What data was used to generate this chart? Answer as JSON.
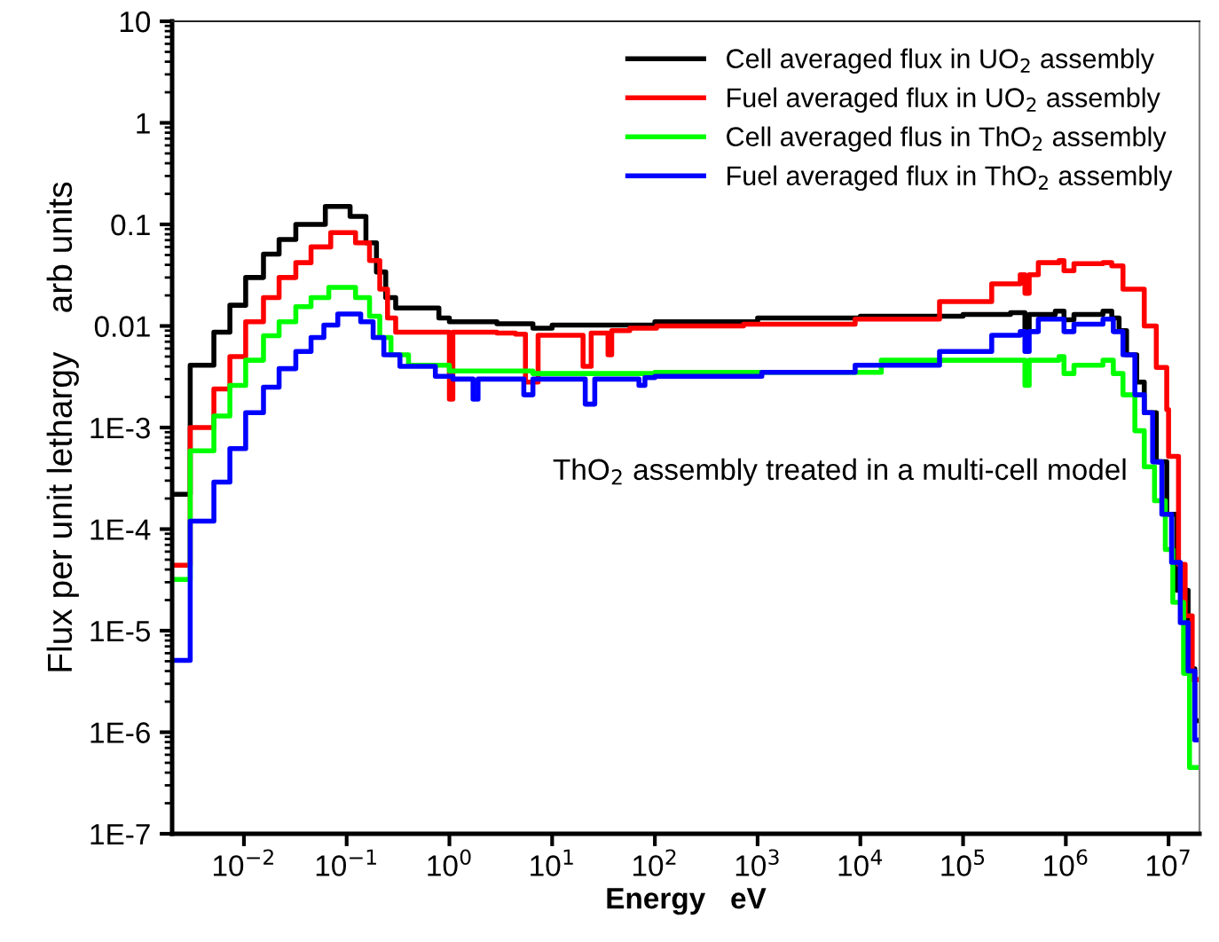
{
  "chart_data": {
    "type": "step",
    "xlabel": "Energy   eV",
    "ylabel": "Flux per unit lethargy    arb units",
    "log": "xy",
    "grid": false,
    "legend": "top right",
    "xlim": [
      0.002,
      20000000
    ],
    "ylim": [
      1e-07,
      10
    ],
    "xticks": [
      {
        "value": 0.01,
        "label": "10$^{−2}$"
      },
      {
        "value": 0.1,
        "label": "10$^{−1}$"
      },
      {
        "value": 1,
        "label": "10$^{0}$"
      },
      {
        "value": 10,
        "label": "10$^{1}$"
      },
      {
        "value": 100,
        "label": "10$^{2}$"
      },
      {
        "value": 1000,
        "label": "10$^{3}$"
      },
      {
        "value": 10000,
        "label": "10$^{4}$"
      },
      {
        "value": 100000,
        "label": "10$^{5}$"
      },
      {
        "value": 1000000,
        "label": "10$^{6}$"
      },
      {
        "value": 10000000,
        "label": "10$^{7}$"
      }
    ],
    "yticks": [
      {
        "value": 1e-07,
        "label": "1E-7"
      },
      {
        "value": 1e-06,
        "label": "1E-6"
      },
      {
        "value": 1e-05,
        "label": "1E-5"
      },
      {
        "value": 0.0001,
        "label": "1E-4"
      },
      {
        "value": 0.001,
        "label": "1E-3"
      },
      0.01,
      0.1,
      1,
      10
    ],
    "annotations": [
      "ThO$_{2}$ assembly treated in a multi-cell model"
    ],
    "series": [
      {
        "name": "Cell averaged flux in UO$_{2}$ assembly",
        "color": "#000000",
        "x": [
          0.002,
          0.003,
          0.0051,
          0.0073,
          0.0104,
          0.0155,
          0.022,
          0.032,
          0.062,
          0.108,
          0.154,
          0.195,
          0.24,
          0.3,
          0.79,
          1.0,
          2.9,
          6.5,
          10,
          100,
          1000,
          10000,
          100000,
          290000,
          400000,
          440000,
          790000,
          960000,
          1200000,
          2300000,
          2800000,
          3300000,
          3900000,
          4900000,
          5800000,
          7600000,
          9600000,
          12000000,
          15500000,
          18000000,
          20000000
        ],
        "values": [
          0.00022,
          0.0041,
          0.0087,
          0.016,
          0.03,
          0.051,
          0.071,
          0.1,
          0.15,
          0.12,
          0.066,
          0.034,
          0.019,
          0.015,
          0.012,
          0.011,
          0.0105,
          0.0095,
          0.0102,
          0.011,
          0.012,
          0.0125,
          0.013,
          0.0135,
          0.009,
          0.013,
          0.014,
          0.0115,
          0.013,
          0.014,
          0.012,
          0.009,
          0.0052,
          0.0028,
          0.0014,
          0.00046,
          0.00014,
          2.5e-05,
          4.2e-06,
          1.3e-06,
          1.3e-06
        ]
      },
      {
        "name": "Fuel averaged flux in UO$_{2}$ assembly",
        "color": "#ff0000",
        "x": [
          0.002,
          0.003,
          0.0051,
          0.0073,
          0.0104,
          0.0155,
          0.022,
          0.032,
          0.045,
          0.07,
          0.122,
          0.167,
          0.21,
          0.25,
          0.3,
          1.0,
          1.08,
          2.9,
          4.4,
          5.5,
          7.3,
          20,
          24,
          35,
          38,
          57,
          104,
          730,
          8900,
          59000,
          190000,
          360000,
          400000,
          440000,
          540000,
          860000,
          960000,
          1200000,
          2300000,
          2800000,
          3600000,
          5800000,
          7600000,
          9600000,
          10000000,
          12500000,
          14500000,
          17000000,
          20000000
        ],
        "values": [
          4.4e-05,
          0.001,
          0.0024,
          0.005,
          0.011,
          0.019,
          0.03,
          0.042,
          0.06,
          0.083,
          0.066,
          0.044,
          0.023,
          0.012,
          0.0087,
          0.0019,
          0.0087,
          0.0085,
          0.0083,
          0.0028,
          0.0081,
          0.004,
          0.0085,
          0.0052,
          0.009,
          0.0095,
          0.01,
          0.0104,
          0.0117,
          0.0174,
          0.026,
          0.032,
          0.021,
          0.032,
          0.042,
          0.044,
          0.035,
          0.041,
          0.042,
          0.039,
          0.023,
          0.01,
          0.0039,
          0.0015,
          0.00052,
          4.5e-05,
          1.4e-05,
          3.3e-06,
          3.3e-06
        ]
      },
      {
        "name": "Cell averaged flus in ThO$_{2}$ assembly",
        "color": "#00ff00",
        "x": [
          0.002,
          0.003,
          0.0051,
          0.0073,
          0.0104,
          0.0155,
          0.022,
          0.032,
          0.045,
          0.067,
          0.122,
          0.167,
          0.21,
          0.27,
          0.4,
          1.0,
          6.5,
          100,
          16000,
          400000,
          440000,
          860000,
          960000,
          1200000,
          2300000,
          2900000,
          3600000,
          4700000,
          5800000,
          7300000,
          9300000,
          11000000,
          14000000,
          16000000,
          20000000
        ],
        "values": [
          3.2e-05,
          0.00059,
          0.0013,
          0.0026,
          0.0046,
          0.008,
          0.011,
          0.0155,
          0.019,
          0.024,
          0.019,
          0.0125,
          0.0077,
          0.0052,
          0.0041,
          0.0036,
          0.0034,
          0.0035,
          0.0046,
          0.0026,
          0.0046,
          0.005,
          0.0034,
          0.0041,
          0.0046,
          0.0034,
          0.0021,
          0.00093,
          0.00041,
          0.00019,
          6.3e-05,
          1.9e-05,
          3.8e-06,
          4.5e-07,
          4.5e-07
        ]
      },
      {
        "name": "Fuel averaged flux in ThO$_{2}$ assembly",
        "color": "#0000ff",
        "x": [
          0.002,
          0.003,
          0.0051,
          0.0073,
          0.0104,
          0.0155,
          0.022,
          0.032,
          0.045,
          0.06,
          0.082,
          0.137,
          0.181,
          0.23,
          0.33,
          0.73,
          1.08,
          1.7,
          1.9,
          5.3,
          6.5,
          21,
          26,
          70,
          80,
          100,
          1100,
          8900,
          59000,
          190000,
          360000,
          400000,
          440000,
          540000,
          960000,
          1200000,
          2300000,
          2900000,
          3600000,
          4700000,
          5800000,
          7000000,
          8600000,
          10700000,
          13000000,
          15500000,
          18000000,
          20000000
        ],
        "values": [
          5.1e-06,
          0.00012,
          0.00029,
          0.00062,
          0.0014,
          0.0025,
          0.0038,
          0.0056,
          0.0077,
          0.0102,
          0.0131,
          0.011,
          0.0077,
          0.0052,
          0.004,
          0.0032,
          0.003,
          0.0019,
          0.003,
          0.0021,
          0.003,
          0.0017,
          0.003,
          0.0026,
          0.0031,
          0.0032,
          0.0035,
          0.0041,
          0.0056,
          0.0081,
          0.0088,
          0.0056,
          0.0088,
          0.0117,
          0.0088,
          0.0104,
          0.0117,
          0.0088,
          0.0052,
          0.0021,
          0.0014,
          0.00046,
          0.00014,
          4.7e-05,
          1.2e-05,
          4e-06,
          8.4e-07,
          8.4e-07
        ]
      }
    ]
  }
}
